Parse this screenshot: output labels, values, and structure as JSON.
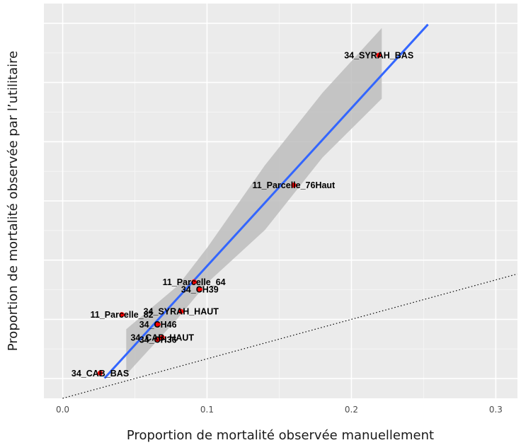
{
  "chart_data": {
    "type": "scatter",
    "title": "",
    "xlabel": "Proportion de mortalité observée manuellement",
    "ylabel": "Proportion de mortalité observée par l’utilitaire",
    "xlim": [
      -0.013,
      0.315
    ],
    "ylim": [
      0.0,
      1.0
    ],
    "x_ticks": [
      0.0,
      0.1,
      0.2,
      0.3
    ],
    "x_tick_labels": [
      "0.0",
      "0.1",
      "0.2",
      "0.3"
    ],
    "y_ticks": [
      0.05,
      0.2,
      0.35,
      0.5,
      0.65,
      0.8,
      0.95
    ],
    "grid": true,
    "background": "#ebebeb",
    "point_color": "#ff0000",
    "fit_color": "#3366ff",
    "ribbon_color": "#bdbdbd",
    "identity_line": "dotted y = x reference",
    "points": [
      {
        "label": "34_SYRAH_BAS",
        "x": 0.219,
        "y": 0.869
      },
      {
        "label": "11_Parcelle_76Haut",
        "x": 0.16,
        "y": 0.54
      },
      {
        "label": "11_Parcelle_64",
        "x": 0.091,
        "y": 0.295
      },
      {
        "label": "34_CH39",
        "x": 0.095,
        "y": 0.276
      },
      {
        "label": "34_SYRAH_HAUT",
        "x": 0.082,
        "y": 0.22
      },
      {
        "label": "11_Parcelle_82",
        "x": 0.041,
        "y": 0.212
      },
      {
        "label": "34_CH46",
        "x": 0.066,
        "y": 0.187
      },
      {
        "label": "34_CAB_HAUT",
        "x": 0.069,
        "y": 0.154
      },
      {
        "label": "34_CH36",
        "x": 0.066,
        "y": 0.149
      },
      {
        "label": "34_CAB_BAS",
        "x": 0.026,
        "y": 0.064
      }
    ],
    "fit_line": {
      "x": [
        0.029,
        0.253
      ],
      "y": [
        0.051,
        0.947
      ]
    },
    "confidence_band": {
      "x": [
        0.044,
        0.08,
        0.1,
        0.14,
        0.18,
        0.221
      ],
      "upper": [
        0.175,
        0.286,
        0.381,
        0.59,
        0.774,
        0.938
      ],
      "lower": [
        0.06,
        0.204,
        0.292,
        0.426,
        0.61,
        0.759
      ]
    },
    "series": [
      {
        "values": [
          0.869,
          0.54,
          0.295,
          0.276,
          0.22,
          0.212,
          0.187,
          0.154,
          0.149,
          0.064
        ]
      }
    ]
  }
}
